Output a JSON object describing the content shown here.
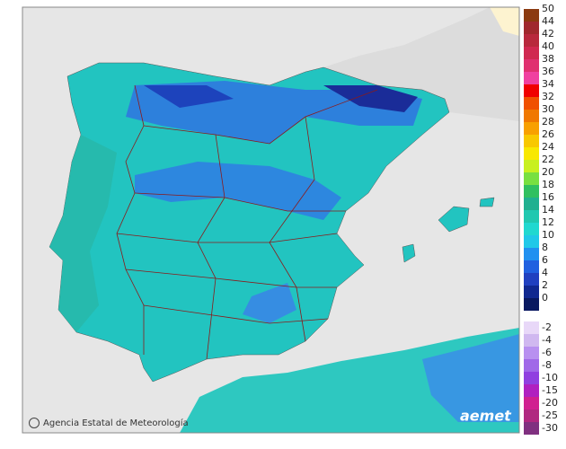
{
  "legend": {
    "items": [
      {
        "value": 50,
        "color": "#8b3a10"
      },
      {
        "value": 44,
        "color": "#a0282d"
      },
      {
        "value": 42,
        "color": "#b8283c"
      },
      {
        "value": 40,
        "color": "#d02850"
      },
      {
        "value": 38,
        "color": "#e03070"
      },
      {
        "value": 36,
        "color": "#f040a0"
      },
      {
        "value": 34,
        "color": "#f00000"
      },
      {
        "value": 32,
        "color": "#f05000"
      },
      {
        "value": 30,
        "color": "#f07800"
      },
      {
        "value": 28,
        "color": "#f8a000"
      },
      {
        "value": 26,
        "color": "#f8c800"
      },
      {
        "value": 24,
        "color": "#f8e800"
      },
      {
        "value": 22,
        "color": "#c8f020"
      },
      {
        "value": 20,
        "color": "#78e040"
      },
      {
        "value": 18,
        "color": "#30c060"
      },
      {
        "value": 16,
        "color": "#20b090"
      },
      {
        "value": 14,
        "color": "#20c8b0"
      },
      {
        "value": 12,
        "color": "#20d8d0"
      },
      {
        "value": 10,
        "color": "#20c8e8"
      },
      {
        "value": 8,
        "color": "#2090f0"
      },
      {
        "value": 6,
        "color": "#2060e0"
      },
      {
        "value": 4,
        "color": "#2040c0"
      },
      {
        "value": 2,
        "color": "#102890"
      },
      {
        "value": 0,
        "color": "#081860"
      },
      {
        "value": -2,
        "color": "#e8d8f8"
      },
      {
        "value": -4,
        "color": "#d0b8f0"
      },
      {
        "value": -6,
        "color": "#b890f0"
      },
      {
        "value": -8,
        "color": "#a068e8"
      },
      {
        "value": -10,
        "color": "#9040e0"
      },
      {
        "value": -15,
        "color": "#b020c0"
      },
      {
        "value": -20,
        "color": "#d02090"
      },
      {
        "value": -25,
        "color": "#b02880"
      },
      {
        "value": -30,
        "color": "#803080"
      }
    ]
  },
  "credit": "Agencia Estatal de Meteorología",
  "logo": "aemet"
}
